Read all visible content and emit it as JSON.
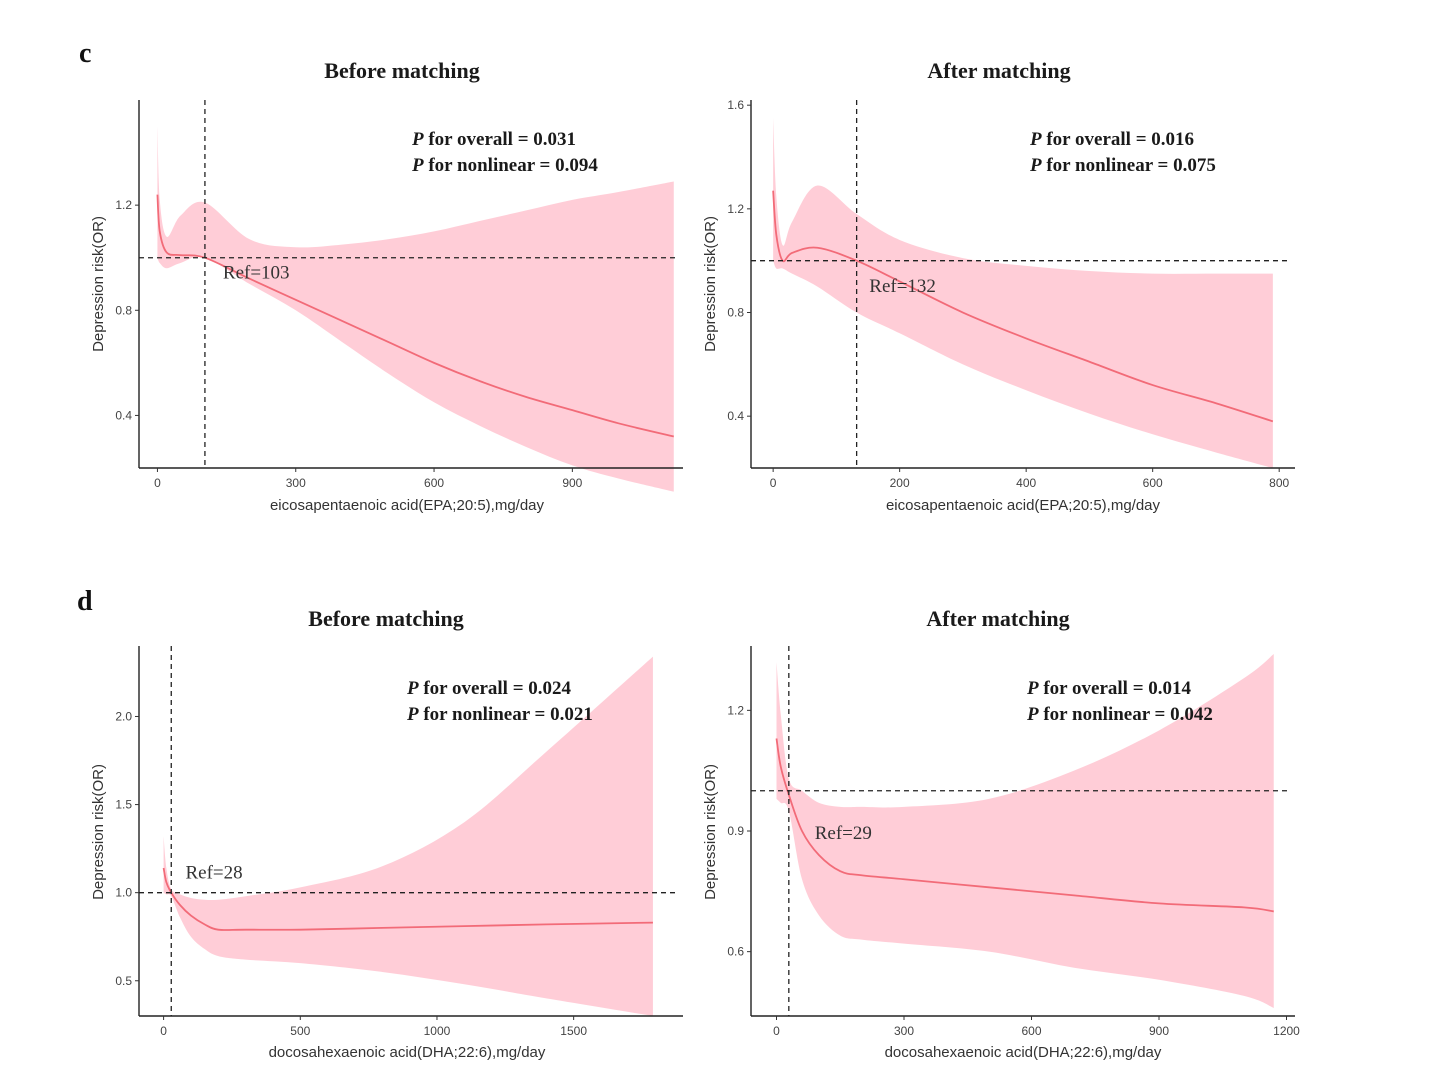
{
  "figure": {
    "panel_c_label": "c",
    "panel_d_label": "d"
  },
  "chart_data": [
    {
      "type": "line",
      "panel": "c",
      "title": "Before matching",
      "xlabel": "eicosapentaenoic acid(EPA;20:5),mg/day",
      "ylabel": "Depression risk(OR)",
      "xlim": [
        -40,
        1140
      ],
      "ylim": [
        0.2,
        1.6
      ],
      "xticks": [
        0,
        300,
        600,
        900
      ],
      "xtick_labels": [
        "0",
        "300",
        "600",
        "900"
      ],
      "yticks": [
        0.4,
        0.8,
        1.2
      ],
      "ytick_labels": [
        "0.4",
        "0.8",
        "1.2"
      ],
      "ref_value": 103,
      "ref_label": "Ref=103",
      "ref_label_pos": [
        142,
        0.92
      ],
      "hline": 1.0,
      "p_overall": "P for overall = 0.031",
      "p_nonlinear": "P for nonlinear = 0.094",
      "series": [
        {
          "name": "OR",
          "x": [
            0,
            5,
            20,
            50,
            103,
            200,
            300,
            400,
            500,
            600,
            700,
            800,
            900,
            1000,
            1120
          ],
          "y": [
            1.24,
            1.1,
            1.02,
            1.01,
            1.0,
            0.92,
            0.84,
            0.76,
            0.68,
            0.6,
            0.53,
            0.47,
            0.42,
            0.37,
            0.32
          ],
          "lower": [
            1.0,
            0.98,
            0.96,
            0.98,
            1.0,
            0.9,
            0.8,
            0.68,
            0.56,
            0.45,
            0.36,
            0.28,
            0.21,
            0.16,
            0.11
          ],
          "upper": [
            1.5,
            1.22,
            1.08,
            1.16,
            1.21,
            1.07,
            1.04,
            1.05,
            1.07,
            1.1,
            1.14,
            1.18,
            1.22,
            1.25,
            1.29
          ]
        }
      ]
    },
    {
      "type": "line",
      "panel": "c",
      "title": "After matching",
      "xlabel": "eicosapentaenoic acid(EPA;20:5),mg/day",
      "ylabel": "Depression risk(OR)",
      "xlim": [
        -35,
        825
      ],
      "ylim": [
        0.2,
        1.62
      ],
      "xticks": [
        0,
        200,
        400,
        600,
        800
      ],
      "xtick_labels": [
        "0",
        "200",
        "400",
        "600",
        "800"
      ],
      "yticks": [
        0.4,
        0.8,
        1.2,
        1.6
      ],
      "ytick_labels": [
        "0.4",
        "0.8",
        "1.2",
        "1.6"
      ],
      "ref_value": 132,
      "ref_label": "Ref=132",
      "ref_label_pos": [
        152,
        0.88
      ],
      "hline": 1.0,
      "p_overall": "P for overall = 0.016",
      "p_nonlinear": "P for nonlinear = 0.075",
      "series": [
        {
          "name": "OR",
          "x": [
            0,
            5,
            15,
            30,
            70,
            132,
            200,
            300,
            400,
            500,
            600,
            700,
            790
          ],
          "y": [
            1.27,
            1.1,
            1.0,
            1.03,
            1.05,
            1.0,
            0.92,
            0.8,
            0.7,
            0.61,
            0.52,
            0.45,
            0.38
          ],
          "lower": [
            1.0,
            0.97,
            0.97,
            0.95,
            0.9,
            0.8,
            0.72,
            0.6,
            0.5,
            0.41,
            0.33,
            0.26,
            0.2
          ],
          "upper": [
            1.55,
            1.25,
            1.06,
            1.15,
            1.29,
            1.18,
            1.08,
            1.01,
            0.98,
            0.96,
            0.95,
            0.95,
            0.95
          ]
        }
      ]
    },
    {
      "type": "line",
      "panel": "d",
      "title": "Before matching",
      "xlabel": "docosahexaenoic acid(DHA;22:6),mg/day",
      "ylabel": "Depression risk(OR)",
      "xlim": [
        -90,
        1900
      ],
      "ylim": [
        0.3,
        2.4
      ],
      "xticks": [
        0,
        500,
        1000,
        1500
      ],
      "xtick_labels": [
        "0",
        "500",
        "1000",
        "1500"
      ],
      "yticks": [
        0.5,
        1.0,
        1.5,
        2.0
      ],
      "ytick_labels": [
        "0.5",
        "1.0",
        "1.5",
        "2.0"
      ],
      "ref_value": 28,
      "ref_label": "Ref=28",
      "ref_label_pos": [
        80,
        1.08
      ],
      "hline": 1.0,
      "p_overall": "P for overall = 0.024",
      "p_nonlinear": "P for nonlinear = 0.021",
      "series": [
        {
          "name": "OR",
          "x": [
            0,
            10,
            28,
            60,
            100,
            150,
            200,
            300,
            500,
            800,
            1100,
            1400,
            1790
          ],
          "y": [
            1.14,
            1.06,
            1.0,
            0.93,
            0.87,
            0.82,
            0.79,
            0.79,
            0.79,
            0.8,
            0.81,
            0.82,
            0.83
          ],
          "lower": [
            1.0,
            0.99,
            0.98,
            0.86,
            0.75,
            0.68,
            0.64,
            0.62,
            0.6,
            0.55,
            0.48,
            0.4,
            0.3
          ],
          "upper": [
            1.32,
            1.14,
            1.02,
            0.99,
            0.97,
            0.96,
            0.96,
            0.98,
            1.03,
            1.15,
            1.4,
            1.8,
            2.34
          ]
        }
      ]
    },
    {
      "type": "line",
      "panel": "d",
      "title": "After matching",
      "xlabel": "docosahexaenoic acid(DHA;22:6),mg/day",
      "ylabel": "Depression risk(OR)",
      "xlim": [
        -60,
        1220
      ],
      "ylim": [
        0.44,
        1.36
      ],
      "xticks": [
        0,
        300,
        600,
        900,
        1200
      ],
      "xtick_labels": [
        "0",
        "300",
        "600",
        "900",
        "1200"
      ],
      "yticks": [
        0.6,
        0.9,
        1.2
      ],
      "ytick_labels": [
        "0.6",
        "0.9",
        "1.2"
      ],
      "ref_value": 29,
      "ref_label": "Ref=29",
      "ref_label_pos": [
        90,
        0.88
      ],
      "hline": 1.0,
      "p_overall": "P for overall = 0.014",
      "p_nonlinear": "P for nonlinear = 0.042",
      "series": [
        {
          "name": "OR",
          "x": [
            0,
            10,
            29,
            60,
            100,
            150,
            200,
            300,
            500,
            700,
            900,
            1100,
            1170
          ],
          "y": [
            1.13,
            1.06,
            0.99,
            0.9,
            0.84,
            0.8,
            0.79,
            0.78,
            0.76,
            0.74,
            0.72,
            0.71,
            0.7
          ],
          "lower": [
            0.98,
            0.97,
            0.95,
            0.78,
            0.69,
            0.64,
            0.63,
            0.62,
            0.6,
            0.56,
            0.53,
            0.49,
            0.46
          ],
          "upper": [
            1.32,
            1.19,
            1.03,
            1.0,
            0.97,
            0.96,
            0.96,
            0.96,
            0.98,
            1.05,
            1.15,
            1.28,
            1.34
          ]
        }
      ]
    }
  ]
}
